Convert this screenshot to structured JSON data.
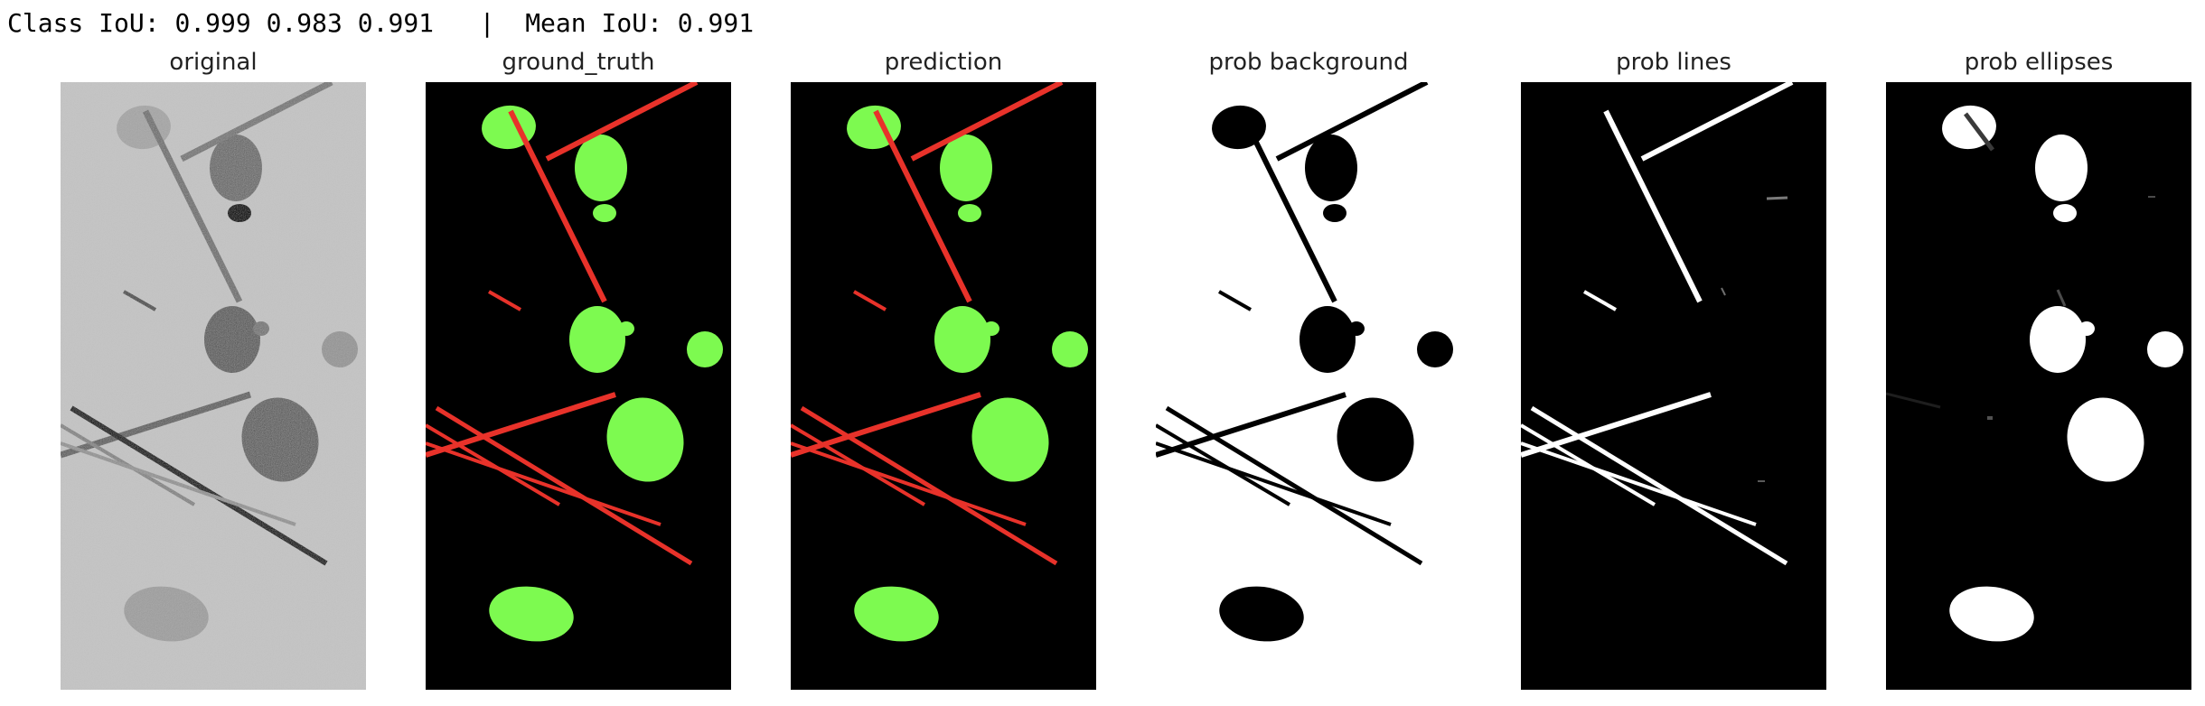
{
  "header": {
    "class_iou_label": "Class IoU:",
    "class_iou_values": [
      "0.999",
      "0.983",
      "0.991"
    ],
    "separator": "|",
    "mean_iou_label": "Mean IoU:",
    "mean_iou_value": "0.991"
  },
  "panels": [
    {
      "title": "original",
      "style": "original"
    },
    {
      "title": "ground_truth",
      "style": "mask"
    },
    {
      "title": "prediction",
      "style": "mask"
    },
    {
      "title": "prob background",
      "style": "prob_background"
    },
    {
      "title": "prob lines",
      "style": "prob_lines"
    },
    {
      "title": "prob ellipses",
      "style": "prob_ellipses"
    }
  ],
  "colors": {
    "mask_background": "#000000",
    "mask_line": "#e8322a",
    "mask_ellipse": "#7dfa50",
    "prob_high": "#ffffff",
    "prob_low": "#000000",
    "original_background": "#c6c6c6"
  }
}
